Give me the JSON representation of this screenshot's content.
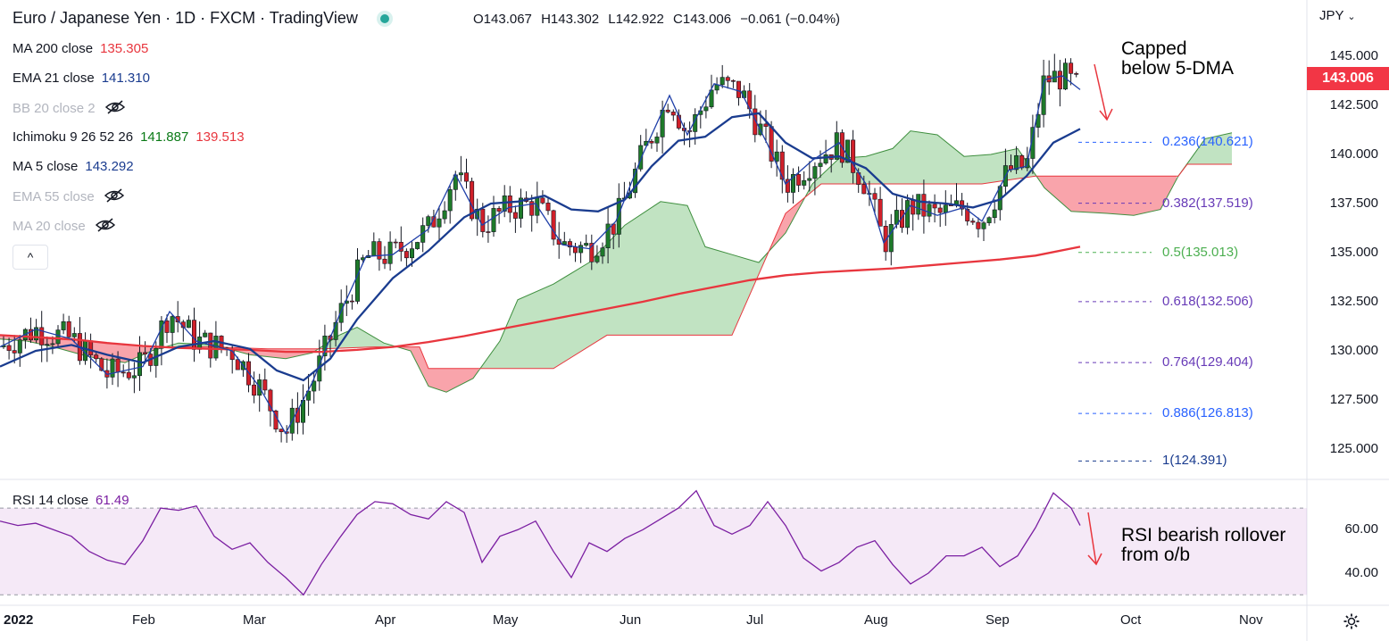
{
  "header": {
    "title": "Euro / Japanese Yen · 1D · FXCM · TradingView",
    "status_dot_color": "#26a69a",
    "ohlc": {
      "open": "O143.067",
      "high": "H143.302",
      "low": "L142.922",
      "close": "C143.006",
      "change": "−0.061 (−0.04%)"
    }
  },
  "currency": "JPY",
  "last_price": "143.006",
  "indicators": [
    {
      "label": "MA 200 close",
      "values": [
        "135.305"
      ],
      "colors": [
        "#e8363e"
      ],
      "visible": true
    },
    {
      "label": "EMA 21 close",
      "values": [
        "141.310"
      ],
      "colors": [
        "#1a3c8f"
      ],
      "visible": true
    },
    {
      "label": "BB 20 close 2",
      "values": [],
      "colors": [],
      "visible": false
    },
    {
      "label": "Ichimoku 9 26 52 26",
      "values": [
        "141.887",
        "139.513"
      ],
      "colors": [
        "#0a7a16",
        "#e8363e"
      ],
      "visible": true
    },
    {
      "label": "MA 5 close",
      "values": [
        "143.292"
      ],
      "colors": [
        "#1a3c8f"
      ],
      "visible": true
    },
    {
      "label": "EMA 55 close",
      "values": [],
      "colors": [],
      "visible": false
    },
    {
      "label": "MA 20 close",
      "values": [],
      "colors": [],
      "visible": false
    }
  ],
  "collapse_button": "^",
  "annotations": {
    "price_note": [
      "Capped",
      "below 5-DMA"
    ],
    "rsi_note": [
      "RSI bearish rollover",
      "from o/b"
    ]
  },
  "rsi_legend": {
    "label": "RSI 14 close",
    "value": "61.49"
  },
  "chart_data": [
    {
      "type": "candlestick",
      "y_ticks": [
        "145.000",
        "142.500",
        "140.000",
        "137.500",
        "135.000",
        "132.500",
        "130.000",
        "127.500",
        "125.000"
      ],
      "ylim": [
        123.5,
        146.5
      ],
      "x_ticks": [
        "2022",
        "Feb",
        "Mar",
        "Apr",
        "May",
        "Jun",
        "Jul",
        "Aug",
        "Sep",
        "Oct",
        "Nov"
      ],
      "fibonacci": [
        {
          "label": "0.236(140.621)",
          "value": 140.621,
          "color": "#2962ff"
        },
        {
          "label": "0.382(137.519)",
          "value": 137.519,
          "color": "#673ab7"
        },
        {
          "label": "0.5(135.013)",
          "value": 135.013,
          "color": "#4caf50"
        },
        {
          "label": "0.618(132.506)",
          "value": 132.506,
          "color": "#673ab7"
        },
        {
          "label": "0.764(129.404)",
          "value": 129.404,
          "color": "#673ab7"
        },
        {
          "label": "0.886(126.813)",
          "value": 126.813,
          "color": "#2962ff"
        },
        {
          "label": "1(124.391)",
          "value": 124.391,
          "color": "#1a3c8f"
        }
      ],
      "series": [
        {
          "name": "MA 200",
          "color": "#e8363e",
          "points": [
            [
              0,
              130.8
            ],
            [
              40,
              130.7
            ],
            [
              80,
              130.6
            ],
            [
              120,
              130.4
            ],
            [
              160,
              130.25
            ],
            [
              200,
              130.15
            ],
            [
              240,
              130.1
            ],
            [
              280,
              130.05
            ],
            [
              320,
              129.95
            ],
            [
              360,
              129.95
            ],
            [
              400,
              130.05
            ],
            [
              440,
              130.2
            ],
            [
              480,
              130.45
            ],
            [
              520,
              130.75
            ],
            [
              560,
              131.1
            ],
            [
              600,
              131.45
            ],
            [
              640,
              131.8
            ],
            [
              680,
              132.15
            ],
            [
              720,
              132.5
            ],
            [
              760,
              132.9
            ],
            [
              800,
              133.25
            ],
            [
              840,
              133.6
            ],
            [
              880,
              133.85
            ],
            [
              920,
              134.0
            ],
            [
              960,
              134.1
            ],
            [
              1000,
              134.2
            ],
            [
              1040,
              134.35
            ],
            [
              1080,
              134.5
            ],
            [
              1120,
              134.65
            ],
            [
              1160,
              134.85
            ],
            [
              1210,
              135.3
            ]
          ]
        },
        {
          "name": "EMA 21",
          "color": "#1a3c8f",
          "points": [
            [
              0,
              129.2
            ],
            [
              40,
              130.0
            ],
            [
              80,
              130.3
            ],
            [
              120,
              129.8
            ],
            [
              160,
              129.4
            ],
            [
              200,
              130.2
            ],
            [
              240,
              130.5
            ],
            [
              280,
              130.1
            ],
            [
              310,
              129.0
            ],
            [
              340,
              128.5
            ],
            [
              370,
              129.6
            ],
            [
              400,
              131.6
            ],
            [
              440,
              133.7
            ],
            [
              480,
              135.1
            ],
            [
              520,
              136.8
            ],
            [
              550,
              137.5
            ],
            [
              580,
              137.6
            ],
            [
              610,
              137.9
            ],
            [
              640,
              137.2
            ],
            [
              670,
              137.1
            ],
            [
              700,
              137.7
            ],
            [
              730,
              139.4
            ],
            [
              760,
              140.7
            ],
            [
              790,
              140.9
            ],
            [
              820,
              141.9
            ],
            [
              850,
              142.1
            ],
            [
              880,
              140.6
            ],
            [
              910,
              139.8
            ],
            [
              940,
              139.9
            ],
            [
              970,
              139.3
            ],
            [
              1000,
              138.0
            ],
            [
              1030,
              137.6
            ],
            [
              1060,
              137.5
            ],
            [
              1090,
              137.3
            ],
            [
              1120,
              137.7
            ],
            [
              1150,
              138.9
            ],
            [
              1180,
              140.6
            ],
            [
              1210,
              141.3
            ]
          ]
        },
        {
          "name": "MA 5",
          "color": "#1f3fa8",
          "points": [
            [
              0,
              130.2
            ],
            [
              40,
              131.1
            ],
            [
              80,
              130.6
            ],
            [
              120,
              128.8
            ],
            [
              160,
              129.2
            ],
            [
              190,
              132.0
            ],
            [
              220,
              130.5
            ],
            [
              260,
              130.0
            ],
            [
              290,
              128.2
            ],
            [
              320,
              125.8
            ],
            [
              350,
              128.4
            ],
            [
              380,
              131.8
            ],
            [
              410,
              134.8
            ],
            [
              440,
              134.9
            ],
            [
              480,
              136.2
            ],
            [
              510,
              139.0
            ],
            [
              540,
              136.4
            ],
            [
              570,
              137.3
            ],
            [
              600,
              137.5
            ],
            [
              630,
              135.4
            ],
            [
              660,
              135.2
            ],
            [
              690,
              136.6
            ],
            [
              720,
              140.0
            ],
            [
              750,
              143.0
            ],
            [
              770,
              141.0
            ],
            [
              800,
              143.6
            ],
            [
              830,
              143.2
            ],
            [
              860,
              140.5
            ],
            [
              880,
              138.5
            ],
            [
              910,
              139.7
            ],
            [
              940,
              140.6
            ],
            [
              970,
              138.5
            ],
            [
              990,
              135.5
            ],
            [
              1020,
              137.4
            ],
            [
              1050,
              136.9
            ],
            [
              1080,
              137.3
            ],
            [
              1100,
              136.6
            ],
            [
              1130,
              139.2
            ],
            [
              1150,
              139.4
            ],
            [
              1170,
              143.8
            ],
            [
              1190,
              144.0
            ],
            [
              1210,
              143.3
            ]
          ]
        }
      ],
      "ichimoku_cloud": {
        "span_a": "#0a7a16",
        "span_b": "#e8363e"
      }
    },
    {
      "type": "line",
      "name": "RSI 14",
      "y_ticks": [
        "60.00",
        "40.00"
      ],
      "ylim": [
        26,
        82
      ],
      "band": [
        30,
        70
      ],
      "color": "#7b1fa2",
      "x": [
        0,
        20,
        40,
        60,
        80,
        100,
        120,
        140,
        160,
        180,
        200,
        220,
        240,
        260,
        280,
        300,
        320,
        340,
        360,
        380,
        400,
        420,
        440,
        460,
        480,
        500,
        520,
        540,
        560,
        580,
        600,
        620,
        640,
        660,
        680,
        700,
        720,
        740,
        760,
        780,
        800,
        820,
        840,
        860,
        880,
        900,
        920,
        940,
        960,
        980,
        1000,
        1020,
        1040,
        1060,
        1080,
        1100,
        1120,
        1140,
        1160,
        1180,
        1200,
        1210
      ],
      "values": [
        64,
        62,
        63,
        60,
        57,
        50,
        46,
        44,
        55,
        70,
        69,
        71,
        57,
        51,
        54,
        45,
        38,
        30,
        44,
        56,
        67,
        73,
        72,
        67,
        65,
        73,
        68,
        45,
        57,
        60,
        64,
        50,
        38,
        54,
        50,
        56,
        60,
        65,
        70,
        78,
        62,
        58,
        62,
        73,
        62,
        47,
        41,
        45,
        52,
        55,
        44,
        35,
        40,
        48,
        48,
        52,
        43,
        48,
        61,
        77,
        70,
        62
      ]
    }
  ]
}
